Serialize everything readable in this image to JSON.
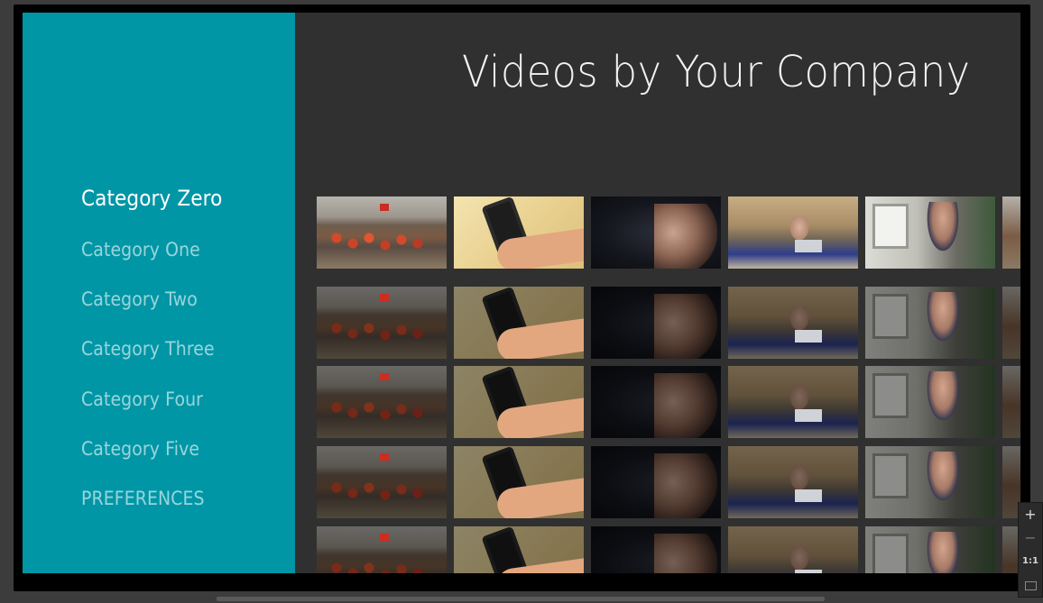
{
  "header": {
    "title": "Videos by Your Company"
  },
  "sidebar": {
    "items": [
      {
        "label": "Category Zero",
        "selected": true
      },
      {
        "label": "Category One",
        "selected": false
      },
      {
        "label": "Category Two",
        "selected": false
      },
      {
        "label": "Category Three",
        "selected": false
      },
      {
        "label": "Category Four",
        "selected": false
      },
      {
        "label": "PREFERENCES",
        "selected": false
      }
    ],
    "item_five": {
      "label": "Category Five",
      "selected": false
    },
    "background_color": "#0096a6"
  },
  "rows": {
    "count": 5,
    "cards_per_row": 6,
    "thumbnails": [
      {
        "subject": "disaster-relief-workers-thumbnail"
      },
      {
        "subject": "phone-in-hand-thumbnail"
      },
      {
        "subject": "man-profile-dark-thumbnail"
      },
      {
        "subject": "man-in-tent-laptop-thumbnail"
      },
      {
        "subject": "man-at-computer-thumbnail"
      },
      {
        "subject": "partial-thumbnail"
      }
    ]
  },
  "zoom_controls": {
    "zoom_in": "+",
    "zoom_out": "−",
    "actual_size": "1:1"
  }
}
